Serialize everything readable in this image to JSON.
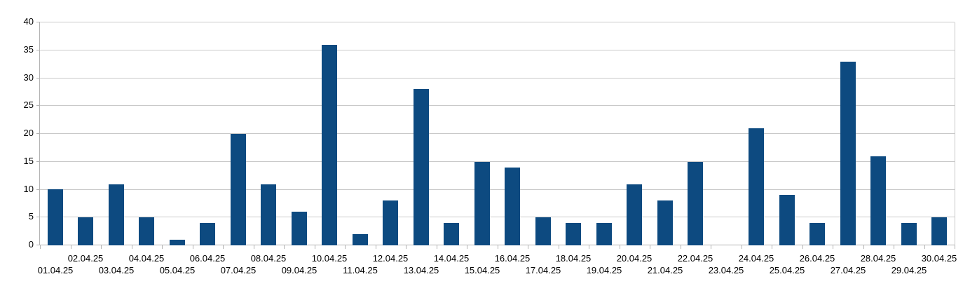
{
  "chart_data": {
    "type": "bar",
    "title": "",
    "xlabel": "",
    "ylabel": "",
    "categories": [
      "01.04.25",
      "02.04.25",
      "03.04.25",
      "04.04.25",
      "05.04.25",
      "06.04.25",
      "07.04.25",
      "08.04.25",
      "09.04.25",
      "10.04.25",
      "11.04.25",
      "12.04.25",
      "13.04.25",
      "14.04.25",
      "15.04.25",
      "16.04.25",
      "17.04.25",
      "18.04.25",
      "19.04.25",
      "20.04.25",
      "21.04.25",
      "22.04.25",
      "23.04.25",
      "24.04.25",
      "25.04.25",
      "26.04.25",
      "27.04.25",
      "28.04.25",
      "29.04.25",
      "30.04.25"
    ],
    "values": [
      10,
      5,
      11,
      5,
      1,
      4,
      20,
      11,
      6,
      36,
      2,
      8,
      28,
      4,
      15,
      14,
      5,
      4,
      4,
      11,
      8,
      15,
      0,
      21,
      9,
      4,
      33,
      16,
      4,
      5
    ],
    "ylim": [
      0,
      40
    ],
    "y_ticks": [
      0,
      5,
      10,
      15,
      20,
      25,
      30,
      35,
      40
    ],
    "grid": true,
    "legend": "none",
    "x_label_rows": "staggered: even days upper row, odd days lower row",
    "colors": {
      "bar": "#0d4a80",
      "gridline": "#c9c9c9",
      "axis": "#b3b3b3",
      "text": "#000000",
      "background": "#ffffff"
    }
  }
}
